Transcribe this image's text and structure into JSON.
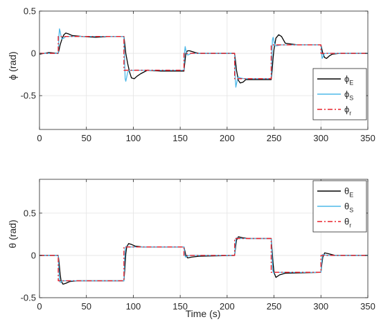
{
  "colors": {
    "estimated": "#000000",
    "simulated": "#4db8e8",
    "reference": "#e8202a",
    "grid": "#e3e3e3",
    "axis": "#262626"
  },
  "chart_data": [
    {
      "type": "line",
      "ylabel": "ϕ (rad)",
      "xlabel": "",
      "xlim": [
        0,
        350
      ],
      "ylim": [
        -0.9,
        0.5
      ],
      "xticks": [
        0,
        50,
        100,
        150,
        200,
        250,
        300,
        350
      ],
      "yticks": [
        -0.5,
        0,
        0.5
      ],
      "grid": true,
      "legend_position": "right",
      "series": [
        {
          "name": "ϕ_E",
          "label": {
            "base": "ϕ",
            "sub": "E"
          },
          "style": "solid",
          "color": "#000000",
          "x": [
            0,
            10,
            19.9,
            20,
            21,
            22,
            24,
            26,
            28,
            31,
            35,
            45,
            60,
            75,
            89.9,
            90,
            91,
            92,
            94,
            96,
            98,
            101,
            104,
            108,
            115,
            130,
            153.9,
            154,
            155,
            156,
            157,
            158,
            160,
            163,
            166,
            170,
            190,
            207.9,
            208,
            209,
            210,
            212,
            214,
            217,
            220,
            230,
            246.9,
            247,
            248,
            249,
            250,
            252,
            255,
            258,
            262,
            275,
            299.9,
            300,
            301,
            302,
            304,
            306,
            309,
            312,
            320,
            350
          ],
          "y": [
            -0.01,
            0.01,
            0.0,
            0.0,
            0.05,
            0.1,
            0.17,
            0.22,
            0.24,
            0.23,
            0.21,
            0.2,
            0.19,
            0.2,
            0.2,
            0.2,
            0.1,
            0.0,
            -0.12,
            -0.22,
            -0.29,
            -0.3,
            -0.27,
            -0.24,
            -0.2,
            -0.21,
            -0.21,
            -0.21,
            -0.1,
            0.0,
            0.02,
            0.03,
            0.03,
            0.02,
            0.01,
            0.0,
            0.0,
            0.0,
            0.0,
            -0.1,
            -0.2,
            -0.32,
            -0.35,
            -0.34,
            -0.31,
            -0.31,
            -0.31,
            -0.31,
            -0.2,
            -0.05,
            0.05,
            0.18,
            0.22,
            0.2,
            0.12,
            0.1,
            0.1,
            0.1,
            0.05,
            0.0,
            -0.05,
            -0.06,
            -0.03,
            -0.01,
            0.0,
            0.0
          ]
        },
        {
          "name": "ϕ_S",
          "label": {
            "base": "ϕ",
            "sub": "S"
          },
          "style": "solid",
          "color": "#4db8e8",
          "x": [
            0,
            10,
            19.9,
            20,
            20.7,
            21.3,
            22,
            23,
            24,
            26,
            28,
            32,
            40,
            60,
            89.9,
            90,
            90.7,
            91.3,
            92,
            93,
            94,
            96,
            100,
            110,
            153.9,
            154,
            154.7,
            155.3,
            156,
            157,
            158,
            162,
            170,
            207.9,
            208,
            208.7,
            209.3,
            210,
            211,
            212,
            214,
            218,
            230,
            246.9,
            247,
            247.7,
            248.3,
            249,
            250,
            251,
            253,
            257,
            270,
            299.9,
            300,
            300.7,
            301.3,
            302,
            303,
            305,
            310,
            350
          ],
          "y": [
            0.0,
            0.0,
            0.0,
            0.0,
            0.2,
            0.29,
            0.26,
            0.2,
            0.17,
            0.18,
            0.2,
            0.2,
            0.2,
            0.2,
            0.2,
            0.2,
            -0.05,
            -0.3,
            -0.33,
            -0.28,
            -0.22,
            -0.2,
            -0.2,
            -0.2,
            -0.2,
            -0.2,
            0.02,
            0.08,
            0.04,
            -0.01,
            -0.02,
            0.0,
            0.0,
            0.0,
            0.0,
            -0.3,
            -0.4,
            -0.36,
            -0.31,
            -0.28,
            -0.29,
            -0.3,
            -0.3,
            -0.3,
            -0.3,
            -0.05,
            0.16,
            0.19,
            0.14,
            0.09,
            0.09,
            0.1,
            0.1,
            0.1,
            0.1,
            0.0,
            -0.06,
            -0.05,
            -0.01,
            0.0,
            0.0,
            0.0
          ]
        },
        {
          "name": "ϕ_r",
          "label": {
            "base": "ϕ",
            "sub": "r"
          },
          "style": "dashdot",
          "color": "#e8202a",
          "x": [
            0,
            20,
            20,
            90,
            90,
            154,
            154,
            208,
            208,
            247,
            247,
            300,
            300,
            350
          ],
          "y": [
            0,
            0,
            0.2,
            0.2,
            -0.2,
            -0.2,
            0,
            0,
            -0.3,
            -0.3,
            0.1,
            0.1,
            0,
            0
          ]
        }
      ]
    },
    {
      "type": "line",
      "ylabel": "θ (rad)",
      "xlabel": "Time (s)",
      "xlim": [
        0,
        350
      ],
      "ylim": [
        -0.5,
        0.9
      ],
      "xticks": [
        0,
        50,
        100,
        150,
        200,
        250,
        300,
        350
      ],
      "yticks": [
        -0.5,
        0,
        0.5
      ],
      "grid": true,
      "legend_position": "top-right",
      "series": [
        {
          "name": "θ_E",
          "label": {
            "base": "θ",
            "sub": "E"
          },
          "style": "solid",
          "color": "#000000",
          "x": [
            0,
            19.9,
            20,
            21,
            22,
            23,
            25,
            28,
            32,
            40,
            89.9,
            90,
            91,
            92,
            93,
            95,
            98,
            102,
            110,
            153.9,
            154,
            155,
            156,
            158,
            162,
            170,
            207.9,
            208,
            209,
            210,
            212,
            216,
            222,
            246.9,
            247,
            248,
            249,
            250,
            252,
            256,
            262,
            299.9,
            300,
            301,
            302,
            304,
            308,
            315,
            350
          ],
          "y": [
            0,
            0,
            0,
            -0.1,
            -0.22,
            -0.3,
            -0.34,
            -0.33,
            -0.31,
            -0.3,
            -0.3,
            -0.3,
            -0.15,
            0.02,
            0.1,
            0.14,
            0.13,
            0.11,
            0.1,
            0.1,
            0.1,
            0.05,
            0.0,
            -0.03,
            -0.02,
            -0.01,
            0.0,
            0.0,
            0.1,
            0.18,
            0.22,
            0.21,
            0.2,
            0.2,
            0.2,
            0.05,
            -0.1,
            -0.2,
            -0.26,
            -0.23,
            -0.21,
            -0.2,
            -0.2,
            -0.1,
            -0.02,
            0.03,
            0.02,
            0.0,
            0.0
          ]
        },
        {
          "name": "θ_S",
          "label": {
            "base": "θ",
            "sub": "S"
          },
          "style": "solid",
          "color": "#4db8e8",
          "x": [
            0,
            19.9,
            20,
            20.7,
            21.5,
            22.5,
            24,
            27,
            35,
            89.9,
            90,
            90.7,
            91.5,
            92.5,
            94,
            97,
            110,
            153.9,
            154,
            154.8,
            155.6,
            157,
            160,
            207.9,
            208,
            208.7,
            209.5,
            210.5,
            212,
            215,
            246.9,
            247,
            247.7,
            248.5,
            249.5,
            251,
            254,
            299.9,
            300,
            300.8,
            301.6,
            303,
            306,
            350
          ],
          "y": [
            0,
            0,
            0,
            -0.2,
            -0.31,
            -0.32,
            -0.3,
            -0.3,
            -0.3,
            -0.3,
            -0.3,
            -0.05,
            0.09,
            0.11,
            0.1,
            0.1,
            0.1,
            0.1,
            0.1,
            0.02,
            -0.02,
            -0.01,
            0.0,
            0.0,
            0.0,
            0.12,
            0.2,
            0.21,
            0.2,
            0.2,
            0.2,
            0.2,
            0.02,
            -0.17,
            -0.21,
            -0.2,
            -0.2,
            -0.2,
            -0.2,
            -0.08,
            0.01,
            0.01,
            0.0,
            0.0
          ]
        },
        {
          "name": "θ_r",
          "label": {
            "base": "θ",
            "sub": "r"
          },
          "style": "dashdot",
          "color": "#e8202a",
          "x": [
            0,
            20,
            20,
            90,
            90,
            154,
            154,
            208,
            208,
            247,
            247,
            300,
            300,
            350
          ],
          "y": [
            0,
            0,
            -0.3,
            -0.3,
            0.1,
            0.1,
            0,
            0,
            0.2,
            0.2,
            -0.2,
            -0.2,
            0,
            0
          ]
        }
      ]
    }
  ]
}
